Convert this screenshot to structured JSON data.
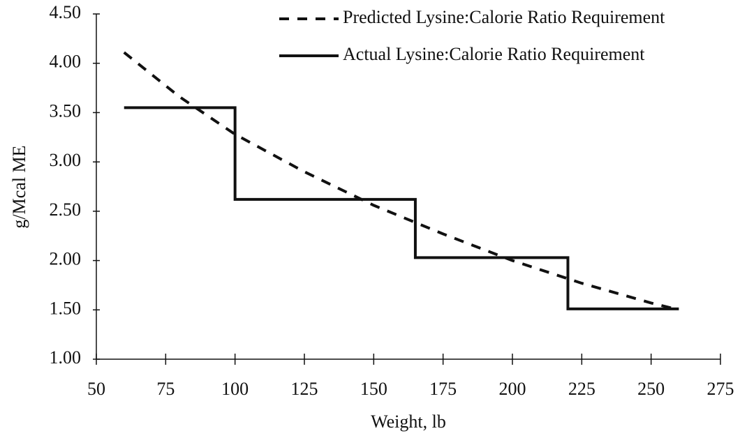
{
  "chart_data": {
    "type": "line",
    "x_label": "Weight, lb",
    "y_label": "g/Mcal ME",
    "xlim": [
      50,
      275
    ],
    "xticks": [
      50,
      75,
      100,
      125,
      150,
      175,
      200,
      225,
      250,
      275
    ],
    "ylim": [
      1,
      4.5
    ],
    "yticks": [
      {
        "value": 1,
        "label": "1.00"
      },
      {
        "value": 1.5,
        "label": "1.50"
      },
      {
        "value": 2,
        "label": "2.00"
      },
      {
        "value": 2.5,
        "label": "2.50"
      },
      {
        "value": 3,
        "label": "3.00"
      },
      {
        "value": 3.5,
        "label": "3.50"
      },
      {
        "value": 4,
        "label": "4.00"
      },
      {
        "value": 4.5,
        "label": "4.50"
      }
    ],
    "grid": false,
    "legend": "upper right",
    "series": [
      {
        "name": "Predicted Lysine:Calorie Ratio Requirement",
        "color": "#111111",
        "dash": true,
        "x": [
          60,
          80,
          100,
          125,
          150,
          175,
          200,
          225,
          250,
          260
        ],
        "values": [
          4.11,
          3.66,
          3.28,
          2.9,
          2.56,
          2.27,
          2.0,
          1.77,
          1.57,
          1.5
        ]
      },
      {
        "name": "Actual Lysine:Calorie Ratio Requirement",
        "color": "#111111",
        "dash": false,
        "x": [
          60,
          100,
          100,
          165,
          165,
          220,
          220,
          260
        ],
        "values": [
          3.55,
          3.55,
          2.62,
          2.62,
          2.03,
          2.03,
          1.51,
          1.51
        ]
      }
    ]
  }
}
